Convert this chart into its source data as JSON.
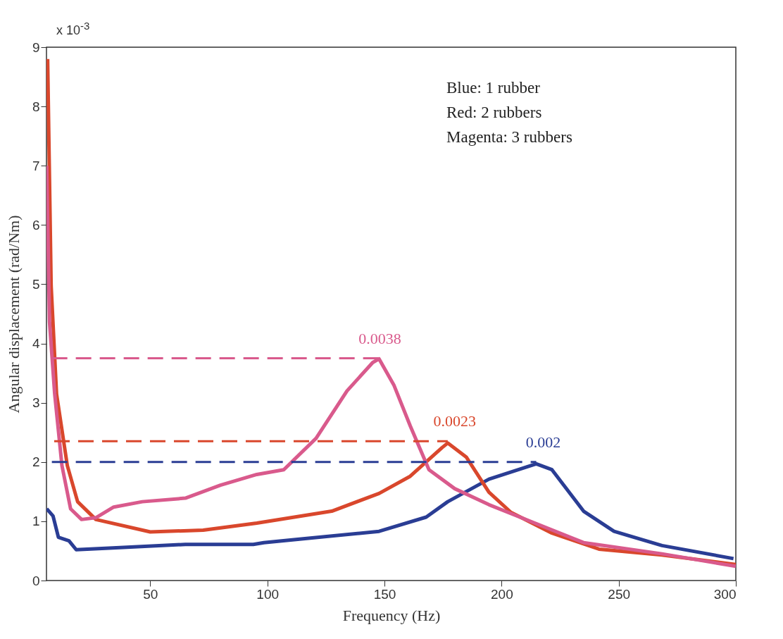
{
  "chart_data": {
    "type": "line",
    "xlabel": "Frequency (Hz)",
    "ylabel": "Angular displacement (rad/Nm)",
    "xlim": [
      5.7,
      300
    ],
    "xticks": [
      50,
      100,
      150,
      200,
      250,
      300
    ],
    "ylim": [
      0,
      9
    ],
    "yticks": [
      0,
      1,
      2,
      3,
      4,
      5,
      6,
      7,
      8,
      9
    ],
    "marker": "none",
    "series": [
      {
        "color": "#2a3d94",
        "x": [
          5.8,
          8.5,
          10.8,
          15.3,
          18.4,
          34,
          65,
          94,
          98.5,
          147.7,
          167.8,
          177,
          194.6,
          214.8,
          221.5,
          235,
          248,
          268.5,
          299
        ],
        "values": [
          1.21,
          1.09,
          0.73,
          0.67,
          0.52,
          0.55,
          0.61,
          0.61,
          0.64,
          0.83,
          1.07,
          1.33,
          1.71,
          1.97,
          1.87,
          1.17,
          0.83,
          0.59,
          0.37
        ]
      },
      {
        "color": "#d9472c",
        "x": [
          6.2,
          7.7,
          10,
          14.6,
          19,
          26.8,
          50,
          72.6,
          95.5,
          127.5,
          147.7,
          161,
          174.5,
          177,
          185,
          194.6,
          204,
          221.5,
          241.6,
          268.5,
          300
        ],
        "values": [
          8.8,
          4.97,
          3.15,
          1.94,
          1.33,
          1.03,
          0.82,
          0.85,
          0.97,
          1.17,
          1.47,
          1.76,
          2.24,
          2.32,
          2.08,
          1.49,
          1.15,
          0.8,
          0.53,
          0.43,
          0.27
        ]
      },
      {
        "color": "#d95a8c",
        "x": [
          5.8,
          7,
          9.2,
          12.3,
          16,
          20.7,
          26.8,
          34.4,
          46.6,
          65,
          80,
          95.5,
          107,
          120.8,
          134,
          145,
          147.7,
          154,
          161,
          169,
          180,
          194.6,
          214.8,
          235,
          268.5,
          300
        ],
        "values": [
          7.0,
          4.36,
          3.15,
          1.94,
          1.21,
          1.03,
          1.06,
          1.24,
          1.33,
          1.39,
          1.61,
          1.79,
          1.87,
          2.4,
          3.2,
          3.68,
          3.74,
          3.3,
          2.61,
          1.87,
          1.55,
          1.28,
          0.96,
          0.64,
          0.45,
          0.24
        ]
      },
      {
        "color": "#d95a8c",
        "line_style": "dashed",
        "x": [
          8,
          147.7
        ],
        "values": [
          3.75,
          3.75
        ]
      },
      {
        "color": "#d9472c",
        "line_style": "dashed",
        "x": [
          9,
          177
        ],
        "values": [
          2.35,
          2.35
        ]
      },
      {
        "color": "#2a3d94",
        "line_style": "dashed",
        "x": [
          8,
          214.8
        ],
        "values": [
          2.0,
          2.0
        ]
      }
    ],
    "annotations": [
      "x 10$^{-3}$",
      "Blue: 1 rubber",
      "Red: 2 rubbers",
      "Magenta: 3 rubbers",
      {
        "text": "0.0038",
        "x": 145,
        "y": 3.75
      },
      {
        "text": "0.0023",
        "x": 177,
        "y": 2.35
      },
      {
        "text": "0.002",
        "x": 214.8,
        "y": 2.0
      }
    ]
  }
}
